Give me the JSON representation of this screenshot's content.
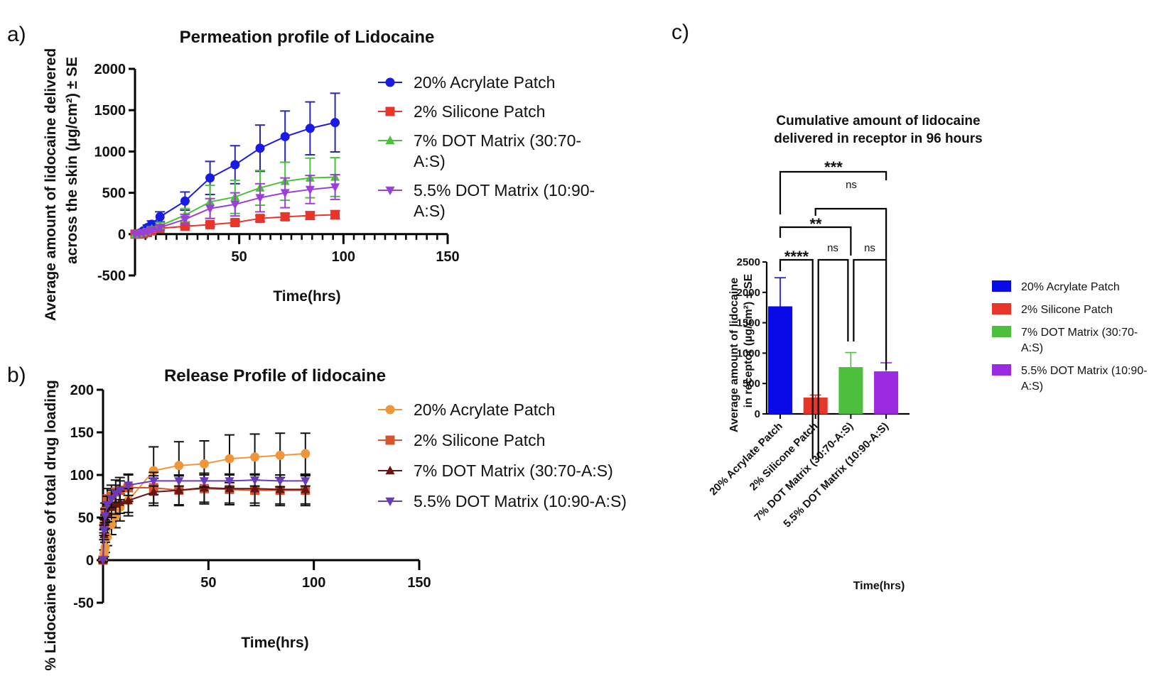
{
  "figure": {
    "panel_labels": [
      "a)",
      "b)",
      "c)"
    ]
  },
  "chart_data": [
    {
      "id": "a",
      "type": "line",
      "title": "Permeation profile of Lidocaine",
      "xlabel": "Time(hrs)",
      "ylabel_line1": "Average amount of lidocaine delivered",
      "ylabel_line2": "across the skin (µg/cm²) ± SE",
      "xlim": [
        0,
        150
      ],
      "ylim": [
        -500,
        2000
      ],
      "xticks": [
        50,
        100,
        150
      ],
      "xtick_labels": [
        "50",
        "100",
        "150"
      ],
      "x_minor_step": 5,
      "yticks": [
        -500,
        0,
        500,
        1000,
        1500,
        2000
      ],
      "ytick_labels": [
        "-500",
        "0",
        "500",
        "1000",
        "1500",
        "2000"
      ],
      "legend_position": "right",
      "x": [
        0,
        2,
        4,
        6,
        8,
        12,
        24,
        36,
        48,
        60,
        72,
        84,
        96
      ],
      "series": [
        {
          "name": "20% Acrylate Patch",
          "legend_lines": [
            "20% Acrylate Patch"
          ],
          "color": "#1a1ae6",
          "errcolor": "#2a2aa8",
          "marker": "circle",
          "values": [
            0,
            10,
            40,
            80,
            120,
            210,
            400,
            680,
            840,
            1040,
            1180,
            1280,
            1350
          ],
          "errors": [
            0,
            10,
            20,
            30,
            40,
            60,
            110,
            200,
            230,
            280,
            310,
            320,
            355
          ]
        },
        {
          "name": "2% Silicone Patch",
          "legend_lines": [
            "2% Silicone Patch"
          ],
          "color": "#e8352a",
          "errcolor": "#e8352a",
          "marker": "square",
          "values": [
            0,
            0,
            5,
            20,
            40,
            70,
            95,
            115,
            140,
            190,
            210,
            225,
            235
          ],
          "errors": [
            0,
            0,
            5,
            8,
            10,
            15,
            20,
            25,
            30,
            35,
            40,
            45,
            50
          ]
        },
        {
          "name": "7% DOT Matrix (30:70-A:S)",
          "legend_lines": [
            "7% DOT Matrix (30:70-",
            "A:S)"
          ],
          "color": "#4cbf3c",
          "errcolor": "#4cbf3c",
          "marker": "triangle-up",
          "values": [
            0,
            5,
            20,
            40,
            60,
            100,
            230,
            390,
            450,
            560,
            640,
            680,
            690
          ],
          "errors": [
            0,
            5,
            10,
            20,
            30,
            40,
            80,
            200,
            200,
            210,
            230,
            240,
            235
          ]
        },
        {
          "name": "5.5% DOT Matrix (10:90-A:S)",
          "legend_lines": [
            "5.5% DOT Matrix (10:90-",
            "A:S)"
          ],
          "color": "#9b3fd6",
          "errcolor": "#9b3fd6",
          "marker": "triangle-down",
          "values": [
            0,
            3,
            15,
            30,
            50,
            80,
            180,
            310,
            360,
            440,
            500,
            540,
            570
          ],
          "errors": [
            0,
            5,
            10,
            15,
            20,
            30,
            60,
            120,
            140,
            170,
            180,
            170,
            150
          ]
        }
      ]
    },
    {
      "id": "b",
      "type": "line",
      "title": "Release Profile of lidocaine",
      "xlabel": "Time(hrs)",
      "ylabel_line1": "% Lidocaine release of total drug loading",
      "xlim": [
        0,
        150
      ],
      "ylim": [
        -50,
        200
      ],
      "xticks": [
        50,
        100,
        150
      ],
      "xtick_labels": [
        "50",
        "100",
        "150"
      ],
      "yticks": [
        -50,
        0,
        50,
        100,
        150,
        200
      ],
      "ytick_labels": [
        "-50",
        "0",
        "50",
        "100",
        "150",
        "200"
      ],
      "legend_position": "right",
      "x": [
        0,
        0.5,
        1,
        2,
        4,
        6,
        8,
        12,
        24,
        36,
        48,
        60,
        72,
        84,
        96
      ],
      "series": [
        {
          "name": "20% Acrylate Patch",
          "legend_lines": [
            "20% Acrylate Patch"
          ],
          "color": "#f0963a",
          "errcolor": "#111111",
          "marker": "circle",
          "values": [
            0,
            8,
            15,
            27,
            42,
            52,
            62,
            70,
            105,
            111,
            113,
            119,
            121,
            123,
            125
          ],
          "errors": [
            2,
            4,
            6,
            10,
            12,
            14,
            16,
            18,
            28,
            28,
            27,
            28,
            27,
            26,
            24
          ]
        },
        {
          "name": "2% Silicone Patch",
          "legend_lines": [
            "2% Silicone Patch"
          ],
          "color": "#d4552e",
          "errcolor": "#111111",
          "marker": "square",
          "values": [
            0,
            40,
            57,
            72,
            75,
            80,
            82,
            85,
            85,
            82,
            84,
            83,
            82,
            82,
            82
          ],
          "errors": [
            2,
            8,
            10,
            12,
            13,
            14,
            15,
            16,
            18,
            18,
            18,
            18,
            18,
            18,
            18
          ]
        },
        {
          "name": "7% DOT Matrix (30:70-A:S)",
          "legend_lines": [
            "7% DOT Matrix (30:70-A:S)"
          ],
          "color": "#6b1414",
          "errcolor": "#111111",
          "marker": "triangle-up",
          "values": [
            0,
            30,
            45,
            55,
            62,
            66,
            68,
            70,
            80,
            82,
            85,
            84,
            84,
            83,
            83
          ],
          "errors": [
            2,
            6,
            8,
            10,
            12,
            12,
            13,
            14,
            16,
            17,
            17,
            17,
            17,
            17,
            17
          ]
        },
        {
          "name": "5.5% DOT Matrix (10:90-A:S)",
          "legend_lines": [
            "5.5% DOT Matrix (10:90-A:S)"
          ],
          "color": "#6a3bb8",
          "errcolor": "#111111",
          "marker": "triangle-down",
          "values": [
            0,
            35,
            52,
            65,
            72,
            78,
            82,
            88,
            93,
            93,
            93,
            93,
            94,
            93,
            93
          ],
          "errors": [
            2,
            6,
            8,
            10,
            10,
            10,
            11,
            12,
            6,
            6,
            7,
            7,
            7,
            7,
            6
          ]
        }
      ]
    },
    {
      "id": "c",
      "type": "bar",
      "title_line1": "Cumulative amount of lidocaine",
      "title_line2": "delivered in receptor in 96 hours",
      "xlabel": "Time(hrs)",
      "ylabel_line1": "Average amount of lidocaine",
      "ylabel_line2": "in receptor (µg/cm²) ± SE",
      "ylim": [
        0,
        2500
      ],
      "yticks": [
        0,
        500,
        1000,
        1500,
        2000,
        2500
      ],
      "ytick_labels": [
        "0",
        "500",
        "1000",
        "1500",
        "2000",
        "2500"
      ],
      "categories": [
        "20% Acrylate Patch",
        "2% Silicone Patch",
        "7% DOT Matrix (30:70-A:S)",
        "5.5% DOT Matrix (10:90-A:S)"
      ],
      "values": [
        1770,
        270,
        770,
        700
      ],
      "errors": [
        470,
        40,
        240,
        140
      ],
      "colors": [
        "#0a0ae8",
        "#e8352a",
        "#4cbf3c",
        "#9b2ae0"
      ],
      "legend_position": "right",
      "legend": [
        {
          "lines": [
            "20% Acrylate Patch"
          ],
          "color": "#0a0ae8"
        },
        {
          "lines": [
            "2% Silicone Patch"
          ],
          "color": "#e8352a"
        },
        {
          "lines": [
            "7% DOT Matrix (30:70-",
            "A:S)"
          ],
          "color": "#4cbf3c"
        },
        {
          "lines": [
            "5.5% DOT Matrix (10:90-",
            "A:S)"
          ],
          "color": "#9b2ae0"
        }
      ],
      "significance": [
        {
          "from": 0,
          "to": 1,
          "label": "****"
        },
        {
          "from": 1,
          "to": 2,
          "label": "ns"
        },
        {
          "from": 2,
          "to": 3,
          "label": "ns"
        },
        {
          "from": 0,
          "to": 2,
          "label": "**"
        },
        {
          "from": 1,
          "to": 3,
          "label": "ns"
        },
        {
          "from": 0,
          "to": 3,
          "label": "***"
        }
      ]
    }
  ]
}
